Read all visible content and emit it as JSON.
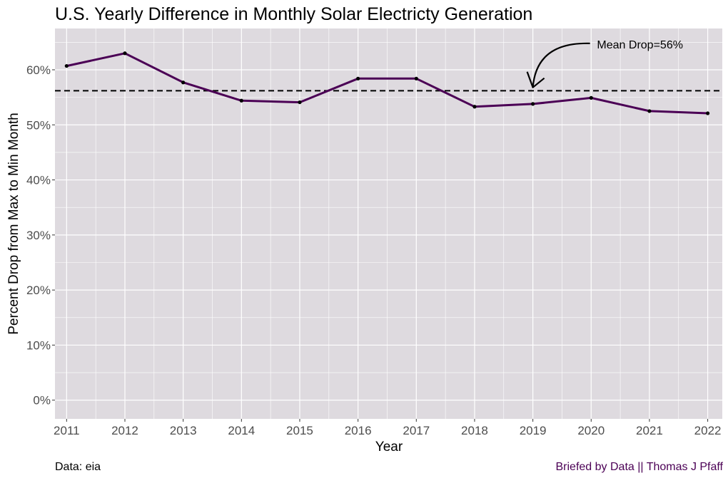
{
  "colors": {
    "panel_bg": "#dedadf",
    "grid_major": "#ffffff",
    "line": "#4b0055",
    "point": "#000000",
    "text": "#000000",
    "tick_text": "#4d4d4d",
    "credit": "#4b0055"
  },
  "chart_data": {
    "type": "line",
    "title": "U.S. Yearly Difference in Monthly Solar Electricty Generation",
    "xlabel": "Year",
    "ylabel": "Percent Drop from Max to Min Month",
    "x": [
      2011,
      2012,
      2013,
      2014,
      2015,
      2016,
      2017,
      2018,
      2019,
      2020,
      2021,
      2022
    ],
    "values": [
      60.7,
      63.0,
      57.7,
      54.4,
      54.1,
      58.4,
      58.4,
      53.3,
      53.8,
      54.9,
      52.5,
      52.1
    ],
    "x_ticks": [
      "2011",
      "2012",
      "2013",
      "2014",
      "2015",
      "2016",
      "2017",
      "2018",
      "2019",
      "2020",
      "2021",
      "2022"
    ],
    "y_ticks": [
      "0%",
      "10%",
      "20%",
      "30%",
      "40%",
      "50%",
      "60%"
    ],
    "y_tick_values": [
      0,
      10,
      20,
      30,
      40,
      50,
      60
    ],
    "xlim": [
      2010.8,
      2022.25
    ],
    "ylim": [
      -3.4,
      67.5
    ],
    "grid": true,
    "reference_line": {
      "value": 56.2,
      "style": "dashed",
      "label": "Mean Drop=56%"
    },
    "annotation": {
      "text": "Mean Drop=56%",
      "x": 2020.1,
      "y": 64.5,
      "arrow_from": [
        2019.98,
        64.8
      ],
      "arrow_to": [
        2019.0,
        56.8
      ]
    }
  },
  "footer": {
    "source": "Data: eia",
    "credit": "Briefed by Data || Thomas J Pfaff"
  }
}
